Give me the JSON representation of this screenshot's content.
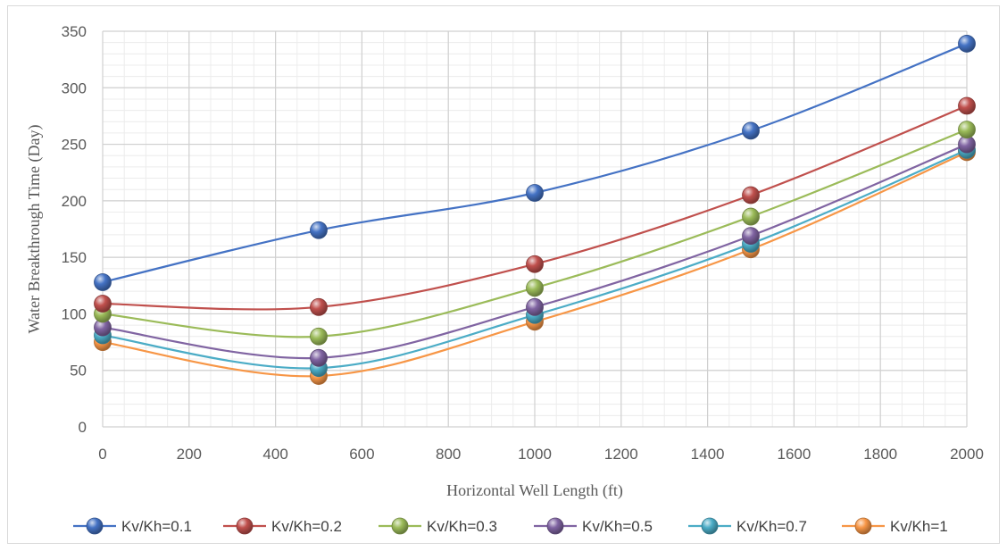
{
  "chart_data": {
    "type": "line",
    "xlabel": "Horizontal Well Length (ft)",
    "ylabel": "Water Breakthrough Time (Day)",
    "xlim": [
      0,
      2000
    ],
    "ylim": [
      0,
      350
    ],
    "x_ticks": [
      0,
      200,
      400,
      600,
      800,
      1000,
      1200,
      1400,
      1600,
      1800,
      2000
    ],
    "y_ticks": [
      0,
      50,
      100,
      150,
      200,
      250,
      300,
      350
    ],
    "x_minor_step": 50,
    "y_minor_step": 10,
    "grid": true,
    "smooth": true,
    "legend_position": "bottom",
    "x": [
      0,
      500,
      1000,
      1500,
      2000
    ],
    "series": [
      {
        "name": "Kv/Kh=0.1",
        "color": "#4472c4",
        "values": [
          128,
          174,
          207,
          262,
          339
        ]
      },
      {
        "name": "Kv/Kh=0.2",
        "color": "#c0504d",
        "values": [
          109,
          106,
          144,
          205,
          284
        ]
      },
      {
        "name": "Kv/Kh=0.3",
        "color": "#9bbb59",
        "values": [
          100,
          80,
          123,
          186,
          263
        ]
      },
      {
        "name": "Kv/Kh=0.5",
        "color": "#8064a2",
        "values": [
          88,
          61,
          106,
          169,
          250
        ]
      },
      {
        "name": "Kv/Kh=0.7",
        "color": "#4bacc6",
        "values": [
          81,
          52,
          99,
          162,
          245
        ]
      },
      {
        "name": "Kv/Kh=1",
        "color": "#f79646",
        "values": [
          75,
          45,
          93,
          157,
          243
        ]
      }
    ]
  }
}
